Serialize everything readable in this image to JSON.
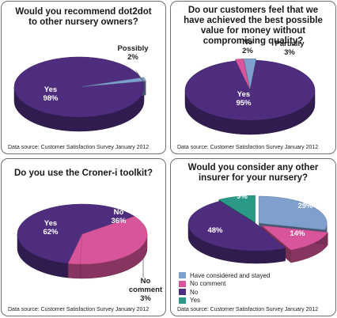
{
  "chart_data": [
    {
      "type": "pie",
      "title": "Would you recommend dot2dot to other nursery owners?",
      "categories": [
        "Yes",
        "Possibly"
      ],
      "values": [
        98,
        2
      ],
      "value_labels": [
        "98%",
        "2%"
      ],
      "source": "Data source: Customer Satisfaction Survey January 2012"
    },
    {
      "type": "pie",
      "title": "Do our customers feel that we have achieved the best possible value for money without compromising quality?",
      "categories": [
        "Yes",
        "No",
        "Partially"
      ],
      "values": [
        95,
        2,
        3
      ],
      "value_labels": [
        "95%",
        "2%",
        "3%"
      ],
      "source": "Data source: Customer Satisfaction Survey January 2012"
    },
    {
      "type": "pie",
      "title": "Do you use the Croner-i toolkit?",
      "categories": [
        "Yes",
        "No",
        "No comment"
      ],
      "values": [
        62,
        36,
        3
      ],
      "value_labels": [
        "62%",
        "36%",
        "3%"
      ],
      "source": "Data source: Customer Satisfaction Survey January 2012"
    },
    {
      "type": "pie",
      "title": "Would you consider any other insurer for your nursery?",
      "categories": [
        "Have considered and stayed",
        "No comment",
        "No",
        "Yes"
      ],
      "values": [
        29,
        14,
        48,
        9
      ],
      "value_labels": [
        "29%",
        "14%",
        "48%",
        "9%"
      ],
      "legend": "bottom-left",
      "source": "Data source: Customer Satisfaction Survey January 2012"
    }
  ],
  "colors": {
    "Yes": "#4e2d7e",
    "Possibly": "#7f9fcd",
    "No": "#d9559b",
    "Partially": "#7f9fcd",
    "No comment": "#d9559b",
    "Have considered and stayed": "#7f9fcd",
    "insurer_No": "#4e2d7e",
    "insurer_Yes": "#2a9a86"
  }
}
